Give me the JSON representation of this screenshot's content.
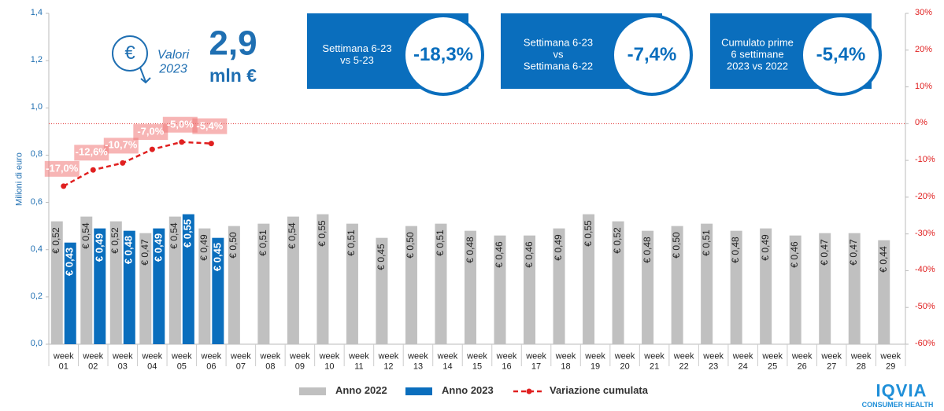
{
  "chart_data": {
    "type": "bar",
    "y_label": "Milioni di euro",
    "categories": [
      "week 01",
      "week 02",
      "week 03",
      "week 04",
      "week 05",
      "week 06",
      "week 07",
      "week 08",
      "week 09",
      "week 10",
      "week 11",
      "week 12",
      "week 13",
      "week 14",
      "week 15",
      "week 16",
      "week 17",
      "week 18",
      "week 19",
      "week 20",
      "week 21",
      "week 22",
      "week 23",
      "week 24",
      "week 25",
      "week 26",
      "week 27",
      "week 28",
      "week 29"
    ],
    "series": [
      {
        "name": "Anno 2022",
        "color": "#c0c0c0",
        "values": [
          0.52,
          0.54,
          0.52,
          0.47,
          0.54,
          0.49,
          0.5,
          0.51,
          0.54,
          0.55,
          0.51,
          0.45,
          0.5,
          0.51,
          0.48,
          0.46,
          0.46,
          0.49,
          0.55,
          0.52,
          0.48,
          0.5,
          0.51,
          0.48,
          0.49,
          0.46,
          0.47,
          0.47,
          0.44
        ],
        "value_labels": [
          "€ 0,52",
          "€ 0,54",
          "€ 0,52",
          "€ 0,47",
          "€ 0,54",
          "€ 0,49",
          "€ 0,50",
          "€ 0,51",
          "€ 0,54",
          "€ 0,55",
          "€ 0,51",
          "€ 0,45",
          "€ 0,50",
          "€ 0,51",
          "€ 0,48",
          "€ 0,46",
          "€ 0,46",
          "€ 0,49",
          "€ 0,55",
          "€ 0,52",
          "€ 0,48",
          "€ 0,50",
          "€ 0,51",
          "€ 0,48",
          "€ 0,49",
          "€ 0,46",
          "€ 0,47",
          "€ 0,47",
          "€ 0,44"
        ]
      },
      {
        "name": "Anno 2023",
        "color": "#0a6ebd",
        "values": [
          0.43,
          0.49,
          0.48,
          0.49,
          0.55,
          0.45,
          null,
          null,
          null,
          null,
          null,
          null,
          null,
          null,
          null,
          null,
          null,
          null,
          null,
          null,
          null,
          null,
          null,
          null,
          null,
          null,
          null,
          null,
          null
        ],
        "value_labels": [
          "€ 0,43",
          "€ 0,49",
          "€ 0,48",
          "€ 0,49",
          "€ 0,55",
          "€ 0,45",
          null,
          null,
          null,
          null,
          null,
          null,
          null,
          null,
          null,
          null,
          null,
          null,
          null,
          null,
          null,
          null,
          null,
          null,
          null,
          null,
          null,
          null,
          null
        ]
      },
      {
        "name": "Variazione cumulata",
        "color": "#e02020",
        "type": "line",
        "axis": "y2",
        "values": [
          -17.0,
          -12.6,
          -10.7,
          -7.0,
          -5.0,
          -5.4,
          null,
          null,
          null,
          null,
          null,
          null,
          null,
          null,
          null,
          null,
          null,
          null,
          null,
          null,
          null,
          null,
          null,
          null,
          null,
          null,
          null,
          null,
          null
        ],
        "value_labels": [
          "-17,0%",
          "-12,6%",
          "-10,7%",
          "-7,0%",
          "-5,0%",
          "-5,4%",
          null,
          null,
          null,
          null,
          null,
          null,
          null,
          null,
          null,
          null,
          null,
          null,
          null,
          null,
          null,
          null,
          null,
          null,
          null,
          null,
          null,
          null,
          null
        ]
      }
    ],
    "ylim": [
      0,
      1.4
    ],
    "yticks": [
      {
        "value": 0,
        "label": "0,0"
      },
      {
        "value": 0.2,
        "label": "0,2"
      },
      {
        "value": 0.4,
        "label": "0,4"
      },
      {
        "value": 0.6,
        "label": "0,6"
      },
      {
        "value": 0.8,
        "label": "0,8"
      },
      {
        "value": 1.0,
        "label": "1,0"
      },
      {
        "value": 1.2,
        "label": "1,2"
      },
      {
        "value": 1.4,
        "label": "1,4"
      }
    ],
    "y2lim": [
      -60,
      30
    ],
    "y2ticks": [
      {
        "value": -60,
        "label": "-60%"
      },
      {
        "value": -50,
        "label": "-50%"
      },
      {
        "value": -40,
        "label": "-40%"
      },
      {
        "value": -30,
        "label": "-30%"
      },
      {
        "value": -20,
        "label": "-20%"
      },
      {
        "value": -10,
        "label": "-10%"
      },
      {
        "value": 0,
        "label": "0%"
      },
      {
        "value": 10,
        "label": "10%"
      },
      {
        "value": 20,
        "label": "20%"
      },
      {
        "value": 30,
        "label": "30%"
      }
    ],
    "reference_line_y2": 0,
    "legend": "bottom"
  },
  "header": {
    "total": "2,9",
    "unit": "mln €",
    "caption": "Valori\n2023",
    "icon": "€"
  },
  "kpis": [
    {
      "text": "Settimana 6-23\nvs 5-23",
      "value": "-18,3%"
    },
    {
      "text": "Settimana 6-23\nvs\nSettimana 6-22",
      "value": "-7,4%"
    },
    {
      "text": "Cumulato prime\n6 settimane\n2023 vs 2022",
      "value": "-5,4%"
    }
  ],
  "logo": {
    "name": "IQVIA",
    "sub": "CONSUMER HEALTH"
  }
}
